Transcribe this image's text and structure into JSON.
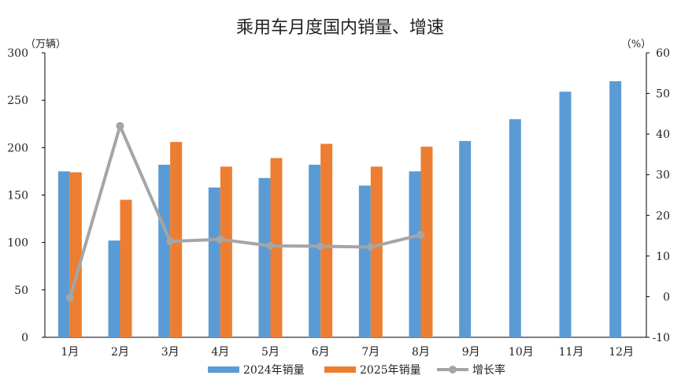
{
  "chart_data": {
    "type": "bar",
    "title": "乘用车月度国内销量、增速",
    "left_unit": "（万辆）",
    "right_unit": "（%）",
    "categories": [
      "1月",
      "2月",
      "3月",
      "4月",
      "5月",
      "6月",
      "7月",
      "8月",
      "9月",
      "10月",
      "11月",
      "12月"
    ],
    "series": [
      {
        "name": "2024年销量",
        "type": "bar",
        "axis": "left",
        "color": "#5b9bd5",
        "values": [
          175,
          102,
          182,
          158,
          168,
          182,
          160,
          175,
          207,
          230,
          259,
          270
        ]
      },
      {
        "name": "2025年销量",
        "type": "bar",
        "axis": "left",
        "color": "#ed7d31",
        "values": [
          174,
          145,
          206,
          180,
          189,
          204,
          180,
          201,
          null,
          null,
          null,
          null
        ]
      },
      {
        "name": "增长率",
        "type": "line",
        "axis": "right",
        "color": "#a5a5a5",
        "values": [
          -0.3,
          42,
          13.6,
          14.1,
          12.5,
          12.4,
          12.2,
          15.2,
          null,
          null,
          null,
          null
        ]
      }
    ],
    "ylim_left": [
      0,
      300
    ],
    "yticks_left": [
      0,
      50,
      100,
      150,
      200,
      250,
      300
    ],
    "ylim_right": [
      -10,
      60
    ],
    "yticks_right": [
      -10,
      0,
      10,
      20,
      30,
      40,
      50,
      60
    ],
    "negative_tick_color": "#ff0000",
    "grid": false,
    "legend_position": "bottom"
  }
}
